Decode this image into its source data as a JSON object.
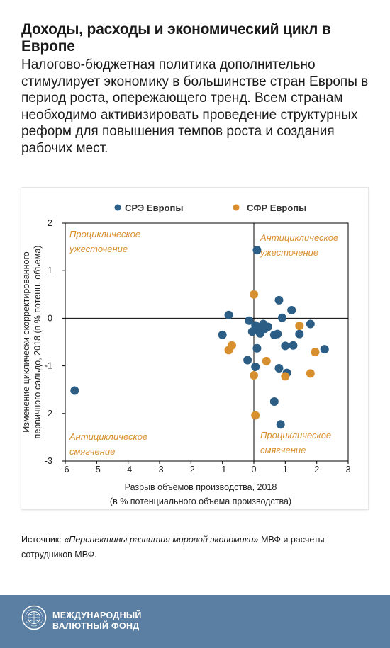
{
  "header": {
    "title": "Доходы, расходы и экономический цикл в Европе",
    "subtitle": "Налогово-бюджетная политика дополнительно стимулирует экономику в большинстве стран Европы в период роста, опережающего тренд. Всем странам необходимо активизировать проведение структурных реформ для повышения темпов роста и создания рабочих мест."
  },
  "colors": {
    "series_1": "#2b5d85",
    "series_2": "#d8902f",
    "quadrant_label": "#d8902f",
    "footer": "#5a7fa3"
  },
  "chart_data": {
    "type": "scatter",
    "xlabel": "Разрыв объемов производства, 2018",
    "xlabel2": "(в % потенциального объема производства)",
    "ylabel": "Изменение циклически скорректированного",
    "ylabel2": "первичного сальдо, 2018 (в % потенц. объема)",
    "xlim": [
      -6,
      3
    ],
    "ylim": [
      -3,
      2
    ],
    "xticks": [
      -6,
      -5,
      -4,
      -3,
      -2,
      -1,
      0,
      1,
      2,
      3
    ],
    "yticks": [
      2,
      1,
      0,
      -1,
      -2,
      -3
    ],
    "legend_position": "top",
    "quadrant_labels": {
      "top_left": [
        "Проциклическое",
        "ужесточение"
      ],
      "top_right": [
        "Антициклическое",
        "ужесточение"
      ],
      "bottom_left": [
        "Антициклическое",
        "смягчение"
      ],
      "bottom_right": [
        "Проциклическое",
        "смягчение"
      ]
    },
    "series": [
      {
        "name": "СРЭ Европы",
        "color": "#2b5d85",
        "points": [
          [
            0.1,
            1.43
          ],
          [
            -0.8,
            0.07
          ],
          [
            0.8,
            0.38
          ],
          [
            1.2,
            0.17
          ],
          [
            0.9,
            0.01
          ],
          [
            -1.0,
            -0.35
          ],
          [
            -0.15,
            -0.05
          ],
          [
            0.05,
            -0.15
          ],
          [
            0.15,
            -0.25
          ],
          [
            0.3,
            -0.12
          ],
          [
            0.35,
            -0.22
          ],
          [
            -0.05,
            -0.28
          ],
          [
            0.2,
            -0.32
          ],
          [
            0.45,
            -0.18
          ],
          [
            0.65,
            -0.35
          ],
          [
            0.75,
            -0.33
          ],
          [
            1.8,
            -0.12
          ],
          [
            1.45,
            -0.33
          ],
          [
            0.1,
            -0.63
          ],
          [
            1.0,
            -0.58
          ],
          [
            1.25,
            -0.57
          ],
          [
            2.25,
            -0.65
          ],
          [
            -0.2,
            -0.88
          ],
          [
            0.05,
            -1.02
          ],
          [
            0.8,
            -1.05
          ],
          [
            1.05,
            -1.15
          ],
          [
            0.65,
            -1.75
          ],
          [
            0.85,
            -2.23
          ],
          [
            -5.7,
            -1.52
          ]
        ]
      },
      {
        "name": "СФР Европы",
        "color": "#d8902f",
        "points": [
          [
            0.0,
            0.5
          ],
          [
            1.45,
            -0.16
          ],
          [
            -0.7,
            -0.57
          ],
          [
            -0.8,
            -0.67
          ],
          [
            0.4,
            -0.9
          ],
          [
            1.95,
            -0.71
          ],
          [
            1.8,
            -1.16
          ],
          [
            1.0,
            -1.22
          ],
          [
            0.0,
            -1.2
          ],
          [
            0.05,
            -2.04
          ]
        ]
      }
    ]
  },
  "source": {
    "label": "Источник:",
    "publication": "«Перспективы развития мировой экономики»",
    "rest": "МВФ и расчеты сотрудников МВФ."
  },
  "footer": {
    "line1": "МЕЖДУНАРОДНЫЙ",
    "line2": "ВАЛЮТНЫЙ ФОНД"
  }
}
